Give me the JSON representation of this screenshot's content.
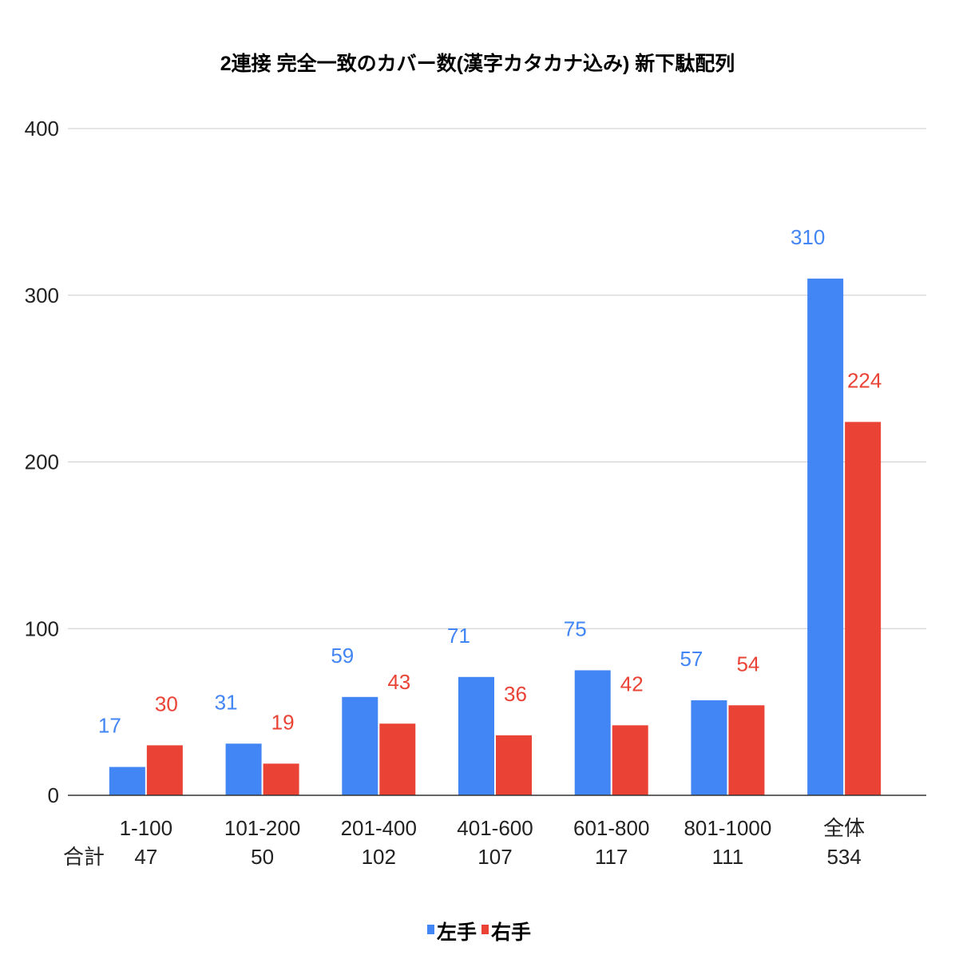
{
  "chart_data": {
    "type": "bar",
    "title": "2連接 完全一致のカバー数(漢字カタカナ込み) 新下駄配列",
    "categories": [
      "1-100",
      "101-200",
      "201-400",
      "401-600",
      "601-800",
      "801-1000",
      "全体"
    ],
    "totals_label": "合計",
    "totals": [
      "47",
      "50",
      "102",
      "107",
      "117",
      "111",
      "534"
    ],
    "series": [
      {
        "name": "左手",
        "color": "#4285f4",
        "values": [
          17,
          31,
          59,
          71,
          75,
          57,
          310
        ]
      },
      {
        "name": "右手",
        "color": "#ea4335",
        "values": [
          30,
          19,
          43,
          36,
          42,
          54,
          224
        ]
      }
    ],
    "ylim": [
      0,
      400
    ],
    "yticks": [
      0,
      100,
      200,
      300,
      400
    ],
    "grid": true,
    "legend_position": "bottom"
  }
}
